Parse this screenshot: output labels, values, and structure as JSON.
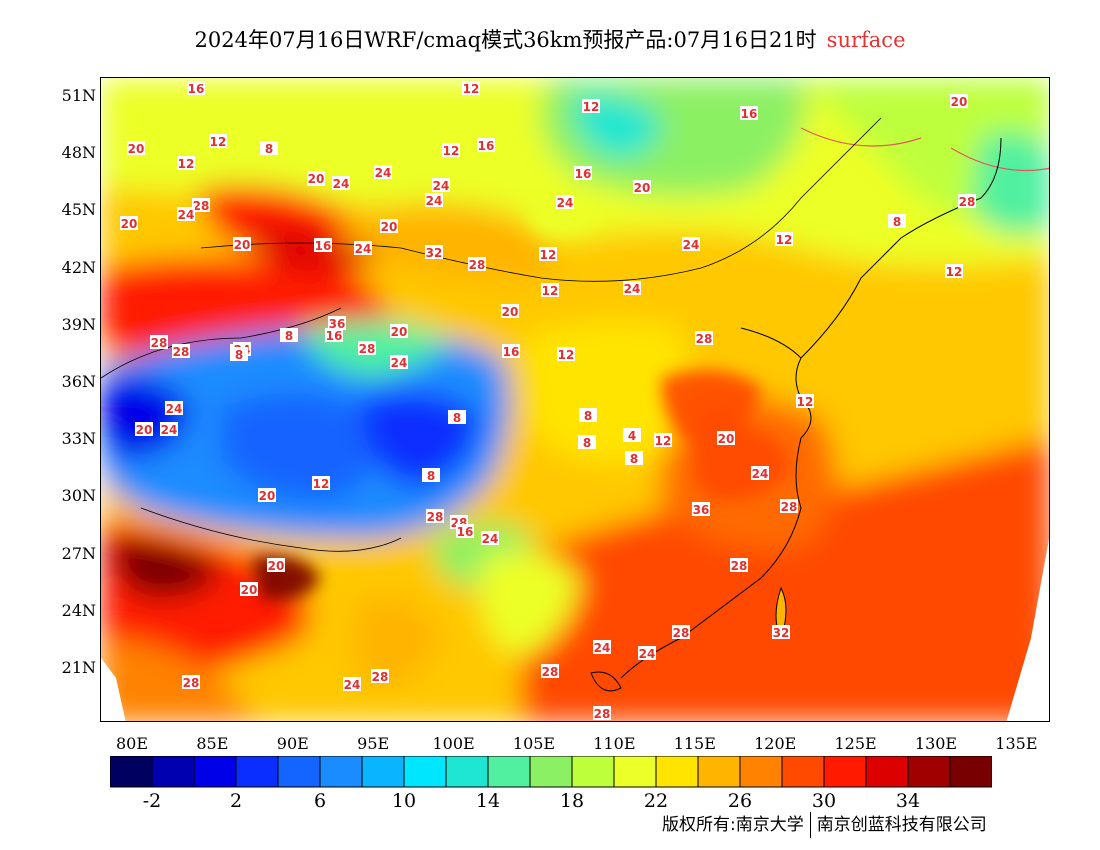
{
  "title": {
    "main": "2024年07月16日WRF/cmaq模式36km预报产品:07月16日21时",
    "level": "surface"
  },
  "map": {
    "lat_labels": [
      "51N",
      "48N",
      "45N",
      "42N",
      "39N",
      "36N",
      "33N",
      "30N",
      "27N",
      "24N",
      "21N"
    ],
    "lon_labels": [
      "80E",
      "85E",
      "90E",
      "95E",
      "100E",
      "105E",
      "110E",
      "115E",
      "120E",
      "125E",
      "130E",
      "135E"
    ],
    "contour_labels": [
      "16",
      "12",
      "12",
      "16",
      "20",
      "12",
      "20",
      "12",
      "8",
      "12",
      "16",
      "12",
      "20",
      "24",
      "24",
      "16",
      "20",
      "28",
      "24",
      "24",
      "24",
      "20",
      "24",
      "20",
      "20",
      "16",
      "32",
      "24",
      "28",
      "24",
      "12",
      "8",
      "28",
      "12",
      "12",
      "24",
      "20",
      "12",
      "16",
      "28",
      "28",
      "8",
      "16",
      "20",
      "24",
      "24",
      "36",
      "28",
      "12",
      "12",
      "8",
      "8",
      "4",
      "12",
      "8",
      "20",
      "24",
      "8",
      "28",
      "8",
      "8",
      "28",
      "36",
      "28",
      "28",
      "32",
      "24",
      "28",
      "24",
      "28",
      "28",
      "24",
      "28",
      "28",
      "28",
      "24",
      "12",
      "16",
      "20",
      "20",
      "20",
      "20",
      "24",
      "24",
      "28"
    ],
    "colors": {
      "ocean_shore_contour": "#e05a5a",
      "coast_line": "#000000"
    }
  },
  "colorbar": {
    "colors": [
      "#000060",
      "#0000b0",
      "#0000e8",
      "#0a2eff",
      "#1464ff",
      "#1a8cff",
      "#0ab4ff",
      "#00e6ff",
      "#1ee6d2",
      "#50f0a0",
      "#8cf064",
      "#beff3c",
      "#ecff28",
      "#ffe400",
      "#ffb400",
      "#ff8200",
      "#ff4a00",
      "#ff1a00",
      "#dc0000",
      "#a00000",
      "#780000"
    ],
    "tick_labels": [
      "-2",
      "2",
      "6",
      "10",
      "14",
      "18",
      "22",
      "26",
      "30",
      "34"
    ]
  },
  "copyright": {
    "left": "版权所有:南京大学",
    "right": "南京创蓝科技有限公司"
  }
}
